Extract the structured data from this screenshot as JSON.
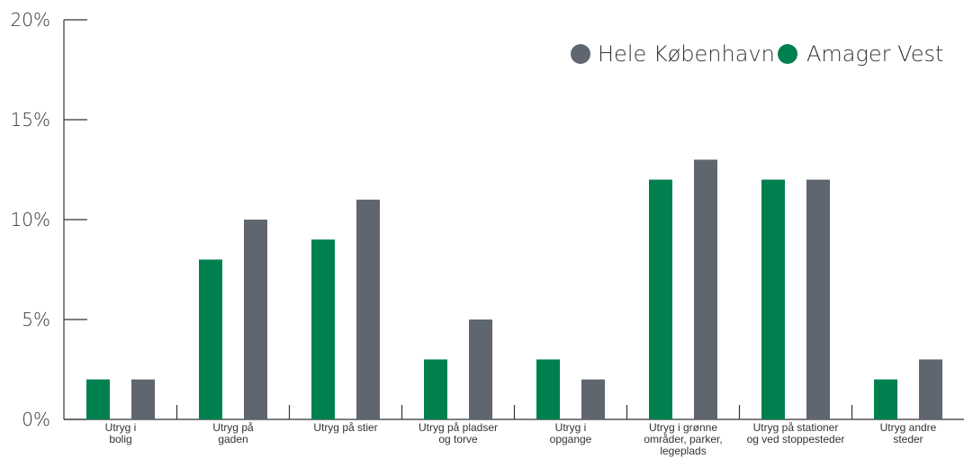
{
  "chart_data": {
    "type": "bar",
    "categories": [
      [
        "Utryg i",
        "bolig"
      ],
      [
        "Utryg på",
        "gaden"
      ],
      [
        "Utryg på stier"
      ],
      [
        "Utryg på pladser",
        "og torve"
      ],
      [
        "Utryg i",
        "opgange"
      ],
      [
        "Utryg i grønne",
        "områder, parker,",
        "legeplads"
      ],
      [
        "Utryg på stationer",
        "og ved stoppesteder"
      ],
      [
        "Utryg andre",
        "steder"
      ]
    ],
    "series": [
      {
        "name": "Amager Vest",
        "color": "#00804f",
        "values": [
          2,
          8,
          9,
          3,
          3,
          12,
          12,
          2
        ]
      },
      {
        "name": "Hele København",
        "color": "#5f6670",
        "values": [
          2,
          10,
          11,
          5,
          2,
          13,
          12,
          3
        ]
      }
    ],
    "ylim": [
      0,
      20
    ],
    "yticks": [
      "0%",
      "5%",
      "10%",
      "15%",
      "20%"
    ],
    "ytick_values": [
      0,
      5,
      10,
      15,
      20
    ],
    "legend": [
      {
        "label": "Hele København",
        "color": "#5f6670"
      },
      {
        "label": "Amager Vest",
        "color": "#00804f"
      }
    ],
    "legend_position": "top-right",
    "grid": false
  }
}
